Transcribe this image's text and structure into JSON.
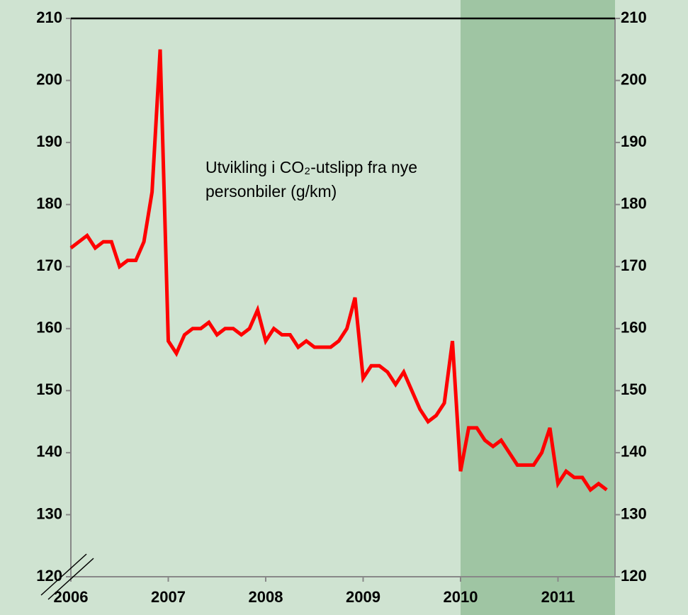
{
  "chart_data": {
    "type": "line",
    "annotation": [
      "Utvikling i CO₂-utslipp fra nye",
      "personbiler (g/km)"
    ],
    "categories": [
      "2006",
      null,
      null,
      null,
      null,
      null,
      null,
      null,
      null,
      null,
      null,
      null,
      "2007",
      null,
      null,
      null,
      null,
      null,
      null,
      null,
      null,
      null,
      null,
      null,
      "2008",
      null,
      null,
      null,
      null,
      null,
      null,
      null,
      null,
      null,
      null,
      null,
      "2009",
      null,
      null,
      null,
      null,
      null,
      null,
      null,
      null,
      null,
      null,
      null,
      "2010",
      null,
      null,
      null,
      null,
      null,
      null,
      null,
      null,
      null,
      null,
      null,
      "2011",
      null,
      null,
      null,
      null,
      null,
      null
    ],
    "series": [
      {
        "color": "#ff0000",
        "values": [
          173,
          174,
          175,
          173,
          174,
          174,
          170,
          171,
          171,
          174,
          182,
          205,
          158,
          156,
          159,
          160,
          160,
          161,
          159,
          160,
          160,
          159,
          160,
          163,
          158,
          160,
          159,
          159,
          157,
          158,
          157,
          157,
          157,
          158,
          160,
          165,
          152,
          154,
          154,
          153,
          151,
          153,
          150,
          147,
          145,
          146,
          148,
          158,
          137,
          144,
          144,
          142,
          141,
          142,
          140,
          138,
          138,
          138,
          140,
          144,
          135,
          137,
          136,
          136,
          134,
          135,
          134
        ]
      }
    ],
    "ylim": [
      120,
      210
    ],
    "yticks": [
      120,
      130,
      140,
      150,
      160,
      170,
      180,
      190,
      200,
      210
    ],
    "y2lim": [
      120,
      210
    ],
    "y2ticks": [
      120,
      130,
      140,
      150,
      160,
      170,
      180,
      190,
      200,
      210
    ],
    "background_color": "#cfe3d1",
    "shaded_from": "2010",
    "shade_color": "#9fc5a3"
  }
}
